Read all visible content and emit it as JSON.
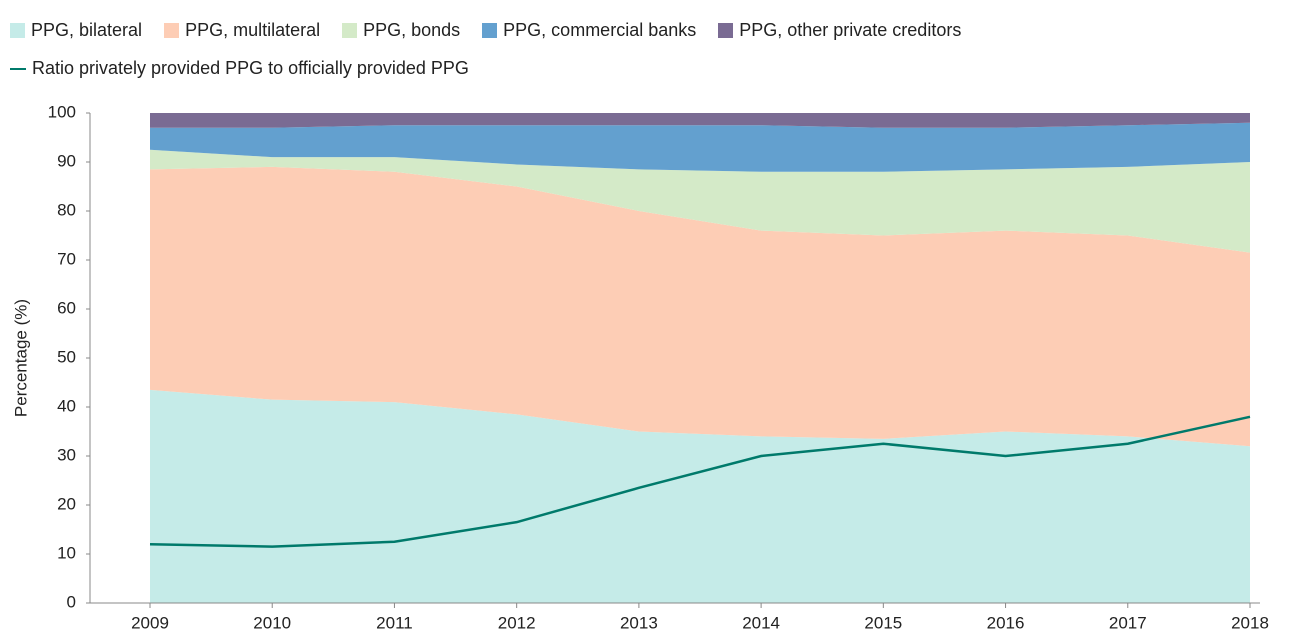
{
  "chart_data": {
    "type": "stacked_area_line",
    "y_label": "Percentage (%)",
    "x": [
      2009,
      2010,
      2011,
      2012,
      2013,
      2014,
      2015,
      2016,
      2017,
      2018
    ],
    "xlim": [
      2009,
      2018
    ],
    "ylim": [
      0,
      100
    ],
    "yticks": [
      0,
      10,
      20,
      30,
      40,
      50,
      60,
      70,
      80,
      90,
      100
    ],
    "series": [
      {
        "name": "PPG, bilateral",
        "color": "#c5ebe8",
        "kind": "area",
        "values": [
          43.5,
          41.5,
          41,
          38.5,
          35,
          34,
          33.5,
          35,
          34,
          32
        ]
      },
      {
        "name": "PPG, multilateral",
        "color": "#fdcdb5",
        "kind": "area",
        "values": [
          45,
          47.5,
          47,
          46.5,
          45,
          42,
          41.5,
          41,
          41,
          39.5
        ]
      },
      {
        "name": "PPG, bonds",
        "color": "#d4eac8",
        "kind": "area",
        "values": [
          4,
          2,
          3,
          4.5,
          8.5,
          12,
          13,
          12.5,
          14,
          18.5
        ]
      },
      {
        "name": "PPG, commercial banks",
        "color": "#63a0cf",
        "kind": "area",
        "values": [
          4.5,
          6,
          6.5,
          8,
          9,
          9.5,
          9,
          8.5,
          8.5,
          8
        ]
      },
      {
        "name": "PPG, other private creditors",
        "color": "#7a6b93",
        "kind": "area",
        "values": [
          3,
          3,
          2.5,
          2.5,
          2.5,
          2.5,
          3,
          3,
          2.5,
          2
        ]
      },
      {
        "name": "Ratio privately provided PPG to officially provided PPG",
        "color": "#007a6b",
        "kind": "line",
        "values": [
          12,
          11.5,
          12.5,
          16.5,
          23.5,
          30,
          32.5,
          30,
          32.5,
          38
        ]
      }
    ]
  }
}
